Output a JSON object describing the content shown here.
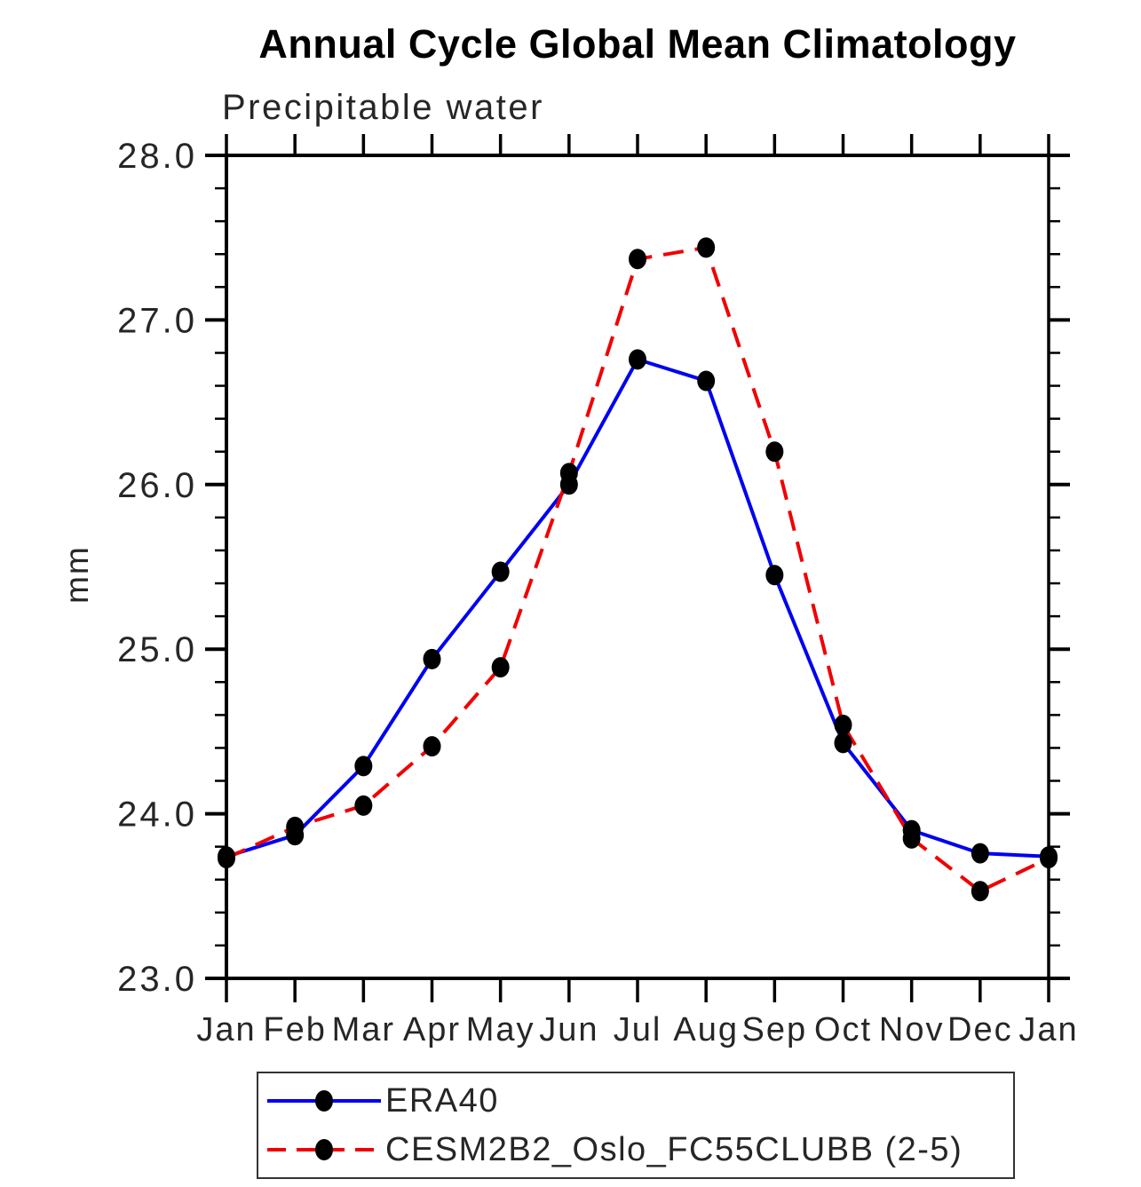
{
  "header": {
    "title": "Annual Cycle Global Mean Climatology",
    "subtitle": "Precipitable water"
  },
  "chart_data": {
    "type": "line",
    "title": "Annual Cycle Global Mean Climatology",
    "subtitle": "Precipitable water",
    "xlabel": "",
    "ylabel": "mm",
    "ylim": [
      23.0,
      28.0
    ],
    "ytick_major_labels": [
      "23.0",
      "24.0",
      "25.0",
      "26.0",
      "27.0",
      "28.0"
    ],
    "ytick_major_values": [
      23.0,
      24.0,
      25.0,
      26.0,
      27.0,
      28.0
    ],
    "ytick_minor_step": 0.2,
    "grid": "off",
    "legend_position": "bottom-box",
    "categories": [
      "Jan",
      "Feb",
      "Mar",
      "Apr",
      "May",
      "Jun",
      "Jul",
      "Aug",
      "Sep",
      "Oct",
      "Nov",
      "Dec",
      "Jan"
    ],
    "series": [
      {
        "name": "ERA40",
        "line_style": "solid",
        "color": "#0000f0",
        "marker": "filled-circle",
        "marker_color": "#000000",
        "values": [
          23.74,
          23.87,
          24.29,
          24.94,
          25.47,
          26.0,
          26.76,
          26.63,
          25.45,
          24.43,
          23.9,
          23.76,
          23.74
        ]
      },
      {
        "name": "CESM2B2_Oslo_FC55CLUBB (2-5)",
        "line_style": "dashed",
        "color": "#f00000",
        "marker": "filled-circle",
        "marker_color": "#000000",
        "values": [
          23.73,
          23.92,
          24.05,
          24.41,
          24.89,
          26.07,
          27.37,
          27.44,
          26.2,
          24.54,
          23.85,
          23.53,
          23.73
        ]
      }
    ]
  }
}
